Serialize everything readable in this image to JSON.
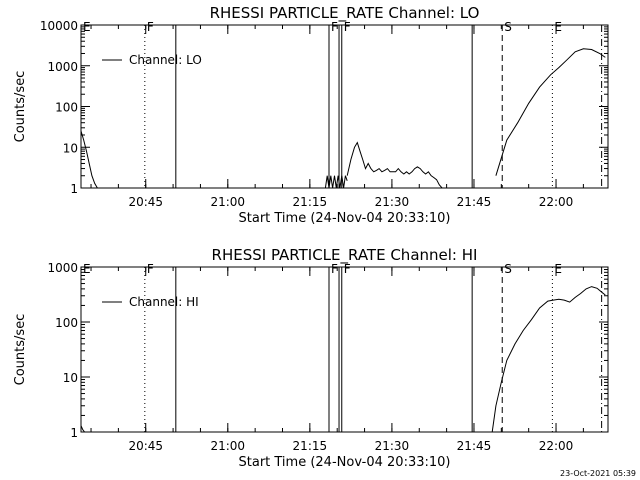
{
  "footer_timestamp": "23-Oct-2021 05:39",
  "chart_data": [
    {
      "type": "line",
      "title": "RHESSI PARTICLE_RATE Channel: LO",
      "xlabel": "Start Time (24-Nov-04 20:33:10)",
      "ylabel": "Counts/sec",
      "yscale": "log",
      "ylim": [
        1,
        10000
      ],
      "xlim": [
        "20:33:10",
        "22:09:30"
      ],
      "xticks": [
        "20:45",
        "21:00",
        "21:15",
        "21:30",
        "21:45",
        "22:00"
      ],
      "yticks": [
        "1",
        "10",
        "100",
        "1000",
        "10000"
      ],
      "legend": {
        "entries": [
          "Channel: LO"
        ],
        "placement": "top-left"
      },
      "markers": [
        {
          "label": "E",
          "time": "20:33:10",
          "style": "dotted"
        },
        {
          "label": "F",
          "time": "20:44:50",
          "style": "dotted"
        },
        {
          "label": "",
          "time": "20:50:30",
          "style": "solid"
        },
        {
          "label": "F",
          "time": "21:18:30",
          "style": "solid"
        },
        {
          "label": "",
          "time": "21:20:20",
          "style": "solid"
        },
        {
          "label": "F",
          "time": "21:20:50",
          "style": "solid"
        },
        {
          "label": "",
          "time": "21:44:40",
          "style": "solid"
        },
        {
          "label": "S",
          "time": "21:50:10",
          "style": "dashed"
        },
        {
          "label": "E",
          "time": "21:59:20",
          "style": "dotted"
        },
        {
          "label": "",
          "time": "22:08:20",
          "style": "dashdot"
        }
      ],
      "series": [
        {
          "name": "Channel: LO",
          "segments": [
            {
              "x": [
                "20:33:10",
                "20:33:40",
                "20:34:10",
                "20:34:40",
                "20:35:10",
                "20:35:40",
                "20:36:10"
              ],
              "y": [
                25,
                15,
                8,
                4,
                2,
                1.3,
                1
              ]
            },
            {
              "x": [
                "21:17:50",
                "21:18:10",
                "21:18:30",
                "21:18:50",
                "21:19:10",
                "21:19:30",
                "21:19:50",
                "21:20:10",
                "21:20:30",
                "21:20:50",
                "21:21:10",
                "21:21:30",
                "21:21:50"
              ],
              "y": [
                1,
                2,
                1,
                2,
                1,
                2,
                1,
                2,
                1,
                2,
                1,
                2,
                1.5
              ]
            },
            {
              "x": [
                "21:21:50",
                "21:22:30",
                "21:23:10",
                "21:23:40",
                "21:24:10",
                "21:24:40",
                "21:25:10",
                "21:25:40",
                "21:26:10",
                "21:26:40",
                "21:27:10",
                "21:27:40",
                "21:28:10",
                "21:28:40",
                "21:29:10",
                "21:29:40",
                "21:30:10",
                "21:30:40",
                "21:31:10",
                "21:31:40",
                "21:32:10",
                "21:32:40",
                "21:33:10",
                "21:33:40",
                "21:34:10",
                "21:34:40",
                "21:35:10",
                "21:35:40",
                "21:36:10",
                "21:36:40",
                "21:37:10",
                "21:37:40",
                "21:38:10",
                "21:38:40",
                "21:39:10",
                "21:39:40",
                "21:40:10"
              ],
              "y": [
                2,
                5,
                10,
                13,
                8,
                5,
                3,
                4,
                3,
                2.5,
                2.7,
                3,
                2.5,
                2.7,
                3,
                2.5,
                2.5,
                2.5,
                3,
                2.5,
                2.2,
                2.5,
                2.2,
                2.5,
                3,
                3.3,
                3,
                2.5,
                2.2,
                2.5,
                2,
                1.8,
                1.6,
                1.2,
                1,
                1,
                1
              ]
            },
            {
              "x": [
                "21:49:00",
                "21:51:00",
                "21:53:00",
                "21:55:00",
                "21:57:00",
                "21:59:00",
                "22:00:30",
                "22:02:00",
                "22:03:30",
                "22:05:00",
                "22:06:30",
                "22:08:00",
                "22:09:00"
              ],
              "y": [
                2,
                15,
                40,
                120,
                300,
                600,
                900,
                1400,
                2200,
                2600,
                2500,
                2000,
                1600
              ]
            }
          ]
        }
      ]
    },
    {
      "type": "line",
      "title": "RHESSI PARTICLE_RATE Channel: HI",
      "xlabel": "Start Time (24-Nov-04 20:33:10)",
      "ylabel": "Counts/sec",
      "yscale": "log",
      "ylim": [
        1,
        1000
      ],
      "xlim": [
        "20:33:10",
        "22:09:30"
      ],
      "xticks": [
        "20:45",
        "21:00",
        "21:15",
        "21:30",
        "21:45",
        "22:00"
      ],
      "yticks": [
        "1",
        "10",
        "100",
        "1000"
      ],
      "legend": {
        "entries": [
          "Channel: HI"
        ],
        "placement": "top-left"
      },
      "markers": [
        {
          "label": "E",
          "time": "20:33:10",
          "style": "dotted"
        },
        {
          "label": "F",
          "time": "20:44:50",
          "style": "dotted"
        },
        {
          "label": "",
          "time": "20:50:30",
          "style": "solid"
        },
        {
          "label": "F",
          "time": "21:18:30",
          "style": "solid"
        },
        {
          "label": "",
          "time": "21:20:20",
          "style": "solid"
        },
        {
          "label": "F",
          "time": "21:20:50",
          "style": "solid"
        },
        {
          "label": "",
          "time": "21:44:40",
          "style": "solid"
        },
        {
          "label": "S",
          "time": "21:50:10",
          "style": "dashed"
        },
        {
          "label": "E",
          "time": "21:59:20",
          "style": "dotted"
        },
        {
          "label": "",
          "time": "22:08:20",
          "style": "dashdot"
        }
      ],
      "series": [
        {
          "name": "Channel: HI",
          "segments": [
            {
              "x": [
                "20:33:10",
                "20:33:30",
                "20:33:50"
              ],
              "y": [
                1.3,
                1.1,
                1
              ]
            },
            {
              "x": [
                "21:48:20",
                "21:49:00",
                "21:50:00",
                "21:51:00",
                "21:52:30",
                "21:54:00",
                "21:55:30",
                "21:57:00",
                "21:58:30",
                "21:59:30",
                "22:00:30",
                "22:01:30",
                "22:02:30",
                "22:03:30",
                "22:04:30",
                "22:05:30",
                "22:06:30",
                "22:07:30",
                "22:08:30",
                "22:09:00"
              ],
              "y": [
                1,
                3,
                8,
                20,
                40,
                70,
                110,
                180,
                240,
                250,
                260,
                250,
                230,
                280,
                330,
                400,
                440,
                410,
                340,
                310
              ]
            }
          ]
        }
      ]
    }
  ]
}
